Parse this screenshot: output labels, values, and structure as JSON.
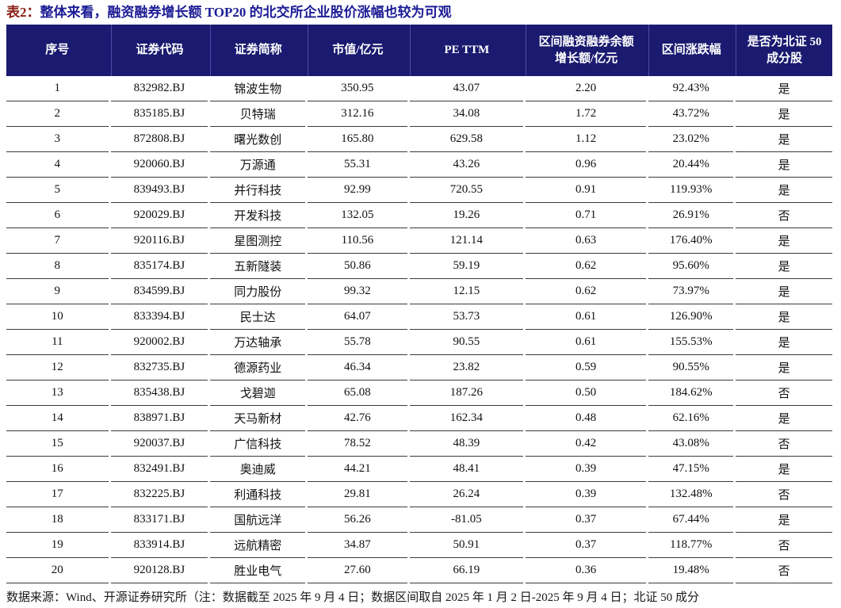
{
  "title": {
    "label": "表2：",
    "text": "整体来看，融资融券增长额 TOP20 的北交所企业股价涨幅也较为可观"
  },
  "table": {
    "columns": [
      "序号",
      "证券代码",
      "证券简称",
      "市值/亿元",
      "PE TTM",
      "区间融资融券余额\n增长额/亿元",
      "区间涨跌幅",
      "是否为北证 50\n成分股"
    ],
    "rows": [
      [
        "1",
        "832982.BJ",
        "锦波生物",
        "350.95",
        "43.07",
        "2.20",
        "92.43%",
        "是"
      ],
      [
        "2",
        "835185.BJ",
        "贝特瑞",
        "312.16",
        "34.08",
        "1.72",
        "43.72%",
        "是"
      ],
      [
        "3",
        "872808.BJ",
        "曙光数创",
        "165.80",
        "629.58",
        "1.12",
        "23.02%",
        "是"
      ],
      [
        "4",
        "920060.BJ",
        "万源通",
        "55.31",
        "43.26",
        "0.96",
        "20.44%",
        "是"
      ],
      [
        "5",
        "839493.BJ",
        "并行科技",
        "92.99",
        "720.55",
        "0.91",
        "119.93%",
        "是"
      ],
      [
        "6",
        "920029.BJ",
        "开发科技",
        "132.05",
        "19.26",
        "0.71",
        "26.91%",
        "否"
      ],
      [
        "7",
        "920116.BJ",
        "星图测控",
        "110.56",
        "121.14",
        "0.63",
        "176.40%",
        "是"
      ],
      [
        "8",
        "835174.BJ",
        "五新隧装",
        "50.86",
        "59.19",
        "0.62",
        "95.60%",
        "是"
      ],
      [
        "9",
        "834599.BJ",
        "同力股份",
        "99.32",
        "12.15",
        "0.62",
        "73.97%",
        "是"
      ],
      [
        "10",
        "833394.BJ",
        "民士达",
        "64.07",
        "53.73",
        "0.61",
        "126.90%",
        "是"
      ],
      [
        "11",
        "920002.BJ",
        "万达轴承",
        "55.78",
        "90.55",
        "0.61",
        "155.53%",
        "是"
      ],
      [
        "12",
        "832735.BJ",
        "德源药业",
        "46.34",
        "23.82",
        "0.59",
        "90.55%",
        "是"
      ],
      [
        "13",
        "835438.BJ",
        "戈碧迦",
        "65.08",
        "187.26",
        "0.50",
        "184.62%",
        "否"
      ],
      [
        "14",
        "838971.BJ",
        "天马新材",
        "42.76",
        "162.34",
        "0.48",
        "62.16%",
        "是"
      ],
      [
        "15",
        "920037.BJ",
        "广信科技",
        "78.52",
        "48.39",
        "0.42",
        "43.08%",
        "否"
      ],
      [
        "16",
        "832491.BJ",
        "奥迪威",
        "44.21",
        "48.41",
        "0.39",
        "47.15%",
        "是"
      ],
      [
        "17",
        "832225.BJ",
        "利通科技",
        "29.81",
        "26.24",
        "0.39",
        "132.48%",
        "否"
      ],
      [
        "18",
        "833171.BJ",
        "国航远洋",
        "56.26",
        "-81.05",
        "0.37",
        "67.44%",
        "是"
      ],
      [
        "19",
        "833914.BJ",
        "远航精密",
        "34.87",
        "50.91",
        "0.37",
        "118.77%",
        "否"
      ],
      [
        "20",
        "920128.BJ",
        "胜业电气",
        "27.60",
        "66.19",
        "0.36",
        "19.48%",
        "否"
      ]
    ]
  },
  "footnote": "数据来源：Wind、开源证券研究所（注：数据截至 2025 年 9 月 4 日；数据区间取自 2025 年 1 月 2 日-2025 年 9 月 4 日；北证 50 成分",
  "colors": {
    "header_bg": "#1a1a70",
    "header_sep": "#4d4da6",
    "title_label": "#8b2015",
    "title_text": "#1c1c96",
    "row_line": "#3a3a3a"
  }
}
